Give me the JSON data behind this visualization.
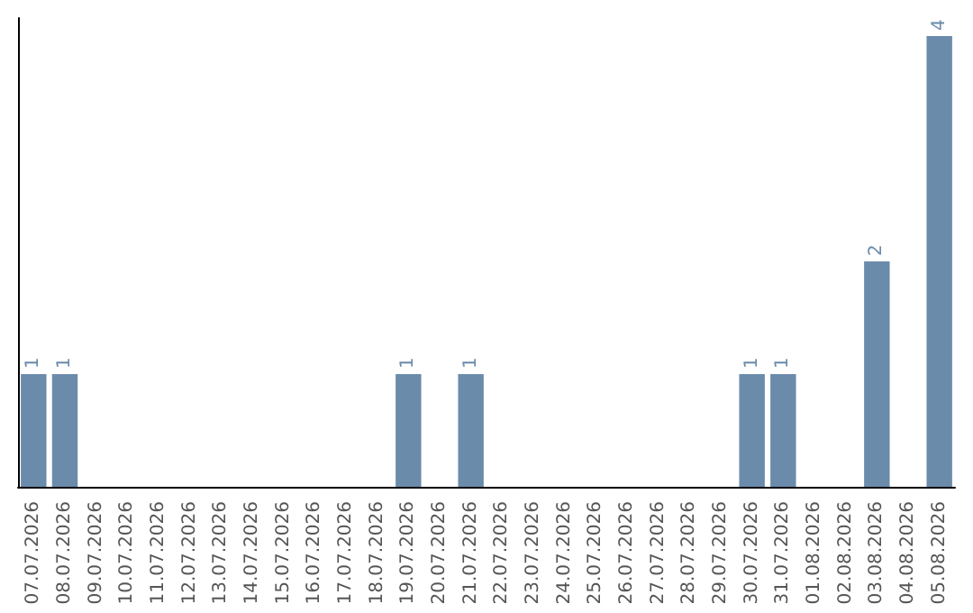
{
  "chart_data": {
    "type": "bar",
    "categories": [
      "07.07.2026",
      "08.07.2026",
      "09.07.2026",
      "10.07.2026",
      "11.07.2026",
      "12.07.2026",
      "13.07.2026",
      "14.07.2026",
      "15.07.2026",
      "16.07.2026",
      "17.07.2026",
      "18.07.2026",
      "19.07.2026",
      "20.07.2026",
      "21.07.2026",
      "22.07.2026",
      "23.07.2026",
      "24.07.2026",
      "25.07.2026",
      "26.07.2026",
      "27.07.2026",
      "28.07.2026",
      "29.07.2026",
      "30.07.2026",
      "31.07.2026",
      "01.08.2026",
      "02.08.2026",
      "03.08.2026",
      "04.08.2026",
      "05.08.2026"
    ],
    "values": [
      1,
      1,
      0,
      0,
      0,
      0,
      0,
      0,
      0,
      0,
      0,
      0,
      1,
      0,
      1,
      0,
      0,
      0,
      0,
      0,
      0,
      0,
      0,
      1,
      1,
      0,
      0,
      2,
      0,
      4
    ],
    "value_labels": [
      "1",
      "1",
      null,
      null,
      null,
      null,
      null,
      null,
      null,
      null,
      null,
      null,
      "1",
      null,
      "1",
      null,
      null,
      null,
      null,
      null,
      null,
      null,
      null,
      "1",
      "1",
      null,
      null,
      "2",
      null,
      "4"
    ],
    "color": "#6b8bab",
    "tick_labels": "x",
    "grid": false
  }
}
